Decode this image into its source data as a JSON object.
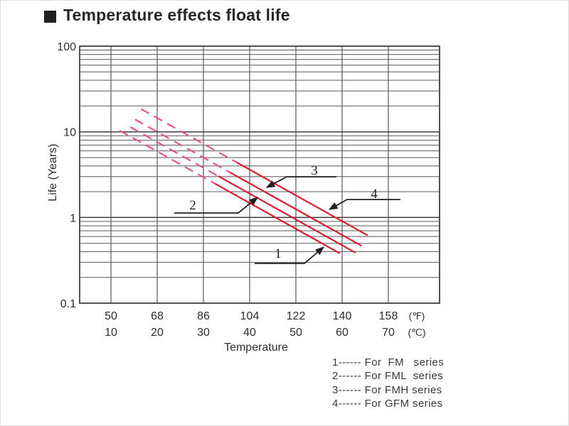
{
  "page": {
    "title": "Temperature effects float life"
  },
  "chart_data": {
    "type": "line",
    "title": "Temperature effects float life",
    "xlabel": "Temperature",
    "ylabel": "Life (Years)",
    "x_axis": {
      "gridlines_at_c": [
        10,
        20,
        30,
        40,
        50,
        60,
        70
      ],
      "rows": [
        {
          "unit": "(℉)",
          "labels": [
            "50",
            "68",
            "86",
            "104",
            "122",
            "140",
            "158"
          ]
        },
        {
          "unit": "(℃)",
          "labels": [
            "10",
            "20",
            "30",
            "40",
            "50",
            "60",
            "70"
          ]
        }
      ],
      "visible_range_c": [
        3.3,
        81
      ]
    },
    "y_axis": {
      "scale": "log",
      "ticks": [
        {
          "label": "100",
          "value": 100
        },
        {
          "label": "10",
          "value": 10
        },
        {
          "label": "1",
          "value": 1
        },
        {
          "label": "0.1",
          "value": 0.1
        }
      ],
      "range": [
        0.1,
        100
      ],
      "minor_gridlines": "2-9 each decade"
    },
    "series": [
      {
        "id": "1",
        "name": "FM series",
        "life_years_at_20c": 5.9,
        "halving_every_c": 10,
        "t_start_c": 11.9,
        "t_end_c": 59.5,
        "dashed_until_c": 32.5,
        "points_c_years": [
          [
            11.9,
            10.3
          ],
          [
            20,
            5.9
          ],
          [
            32.5,
            2.5
          ],
          [
            59.5,
            0.38
          ]
        ]
      },
      {
        "id": "2",
        "name": "FML series",
        "life_years_at_20c": 7.6,
        "halving_every_c": 10,
        "t_start_c": 14.2,
        "t_end_c": 62.9,
        "dashed_until_c": 33.2,
        "points_c_years": [
          [
            14.2,
            11.3
          ],
          [
            20,
            7.6
          ],
          [
            33.2,
            3.0
          ],
          [
            62.9,
            0.39
          ]
        ]
      },
      {
        "id": "3",
        "name": "FMH series",
        "life_years_at_20c": 10.0,
        "halving_every_c": 10,
        "t_start_c": 15.2,
        "t_end_c": 64.2,
        "dashed_until_c": 35.7,
        "points_c_years": [
          [
            15.2,
            13.9
          ],
          [
            20,
            10.0
          ],
          [
            35.7,
            3.4
          ],
          [
            64.2,
            0.47
          ]
        ]
      },
      {
        "id": "4",
        "name": "GFM series",
        "life_years_at_20c": 14.5,
        "halving_every_c": 10,
        "t_start_c": 16.5,
        "t_end_c": 65.5,
        "dashed_until_c": 37.2,
        "points_c_years": [
          [
            16.5,
            18.4
          ],
          [
            20,
            14.5
          ],
          [
            37.2,
            4.4
          ],
          [
            65.5,
            0.62
          ]
        ]
      }
    ],
    "colors": {
      "solid_line": "#e11b2c",
      "dashed_line": "#ed4f8e",
      "grid": "#57585a",
      "border": "#3f4042",
      "callout": "#231f20",
      "text": "#2e2e30"
    }
  },
  "legend": {
    "items": [
      {
        "text": "1------ For  FM   series"
      },
      {
        "text": "2------ For FML  series"
      },
      {
        "text": "3------ For FMH series"
      },
      {
        "text": "4------ For GFM series"
      }
    ]
  }
}
